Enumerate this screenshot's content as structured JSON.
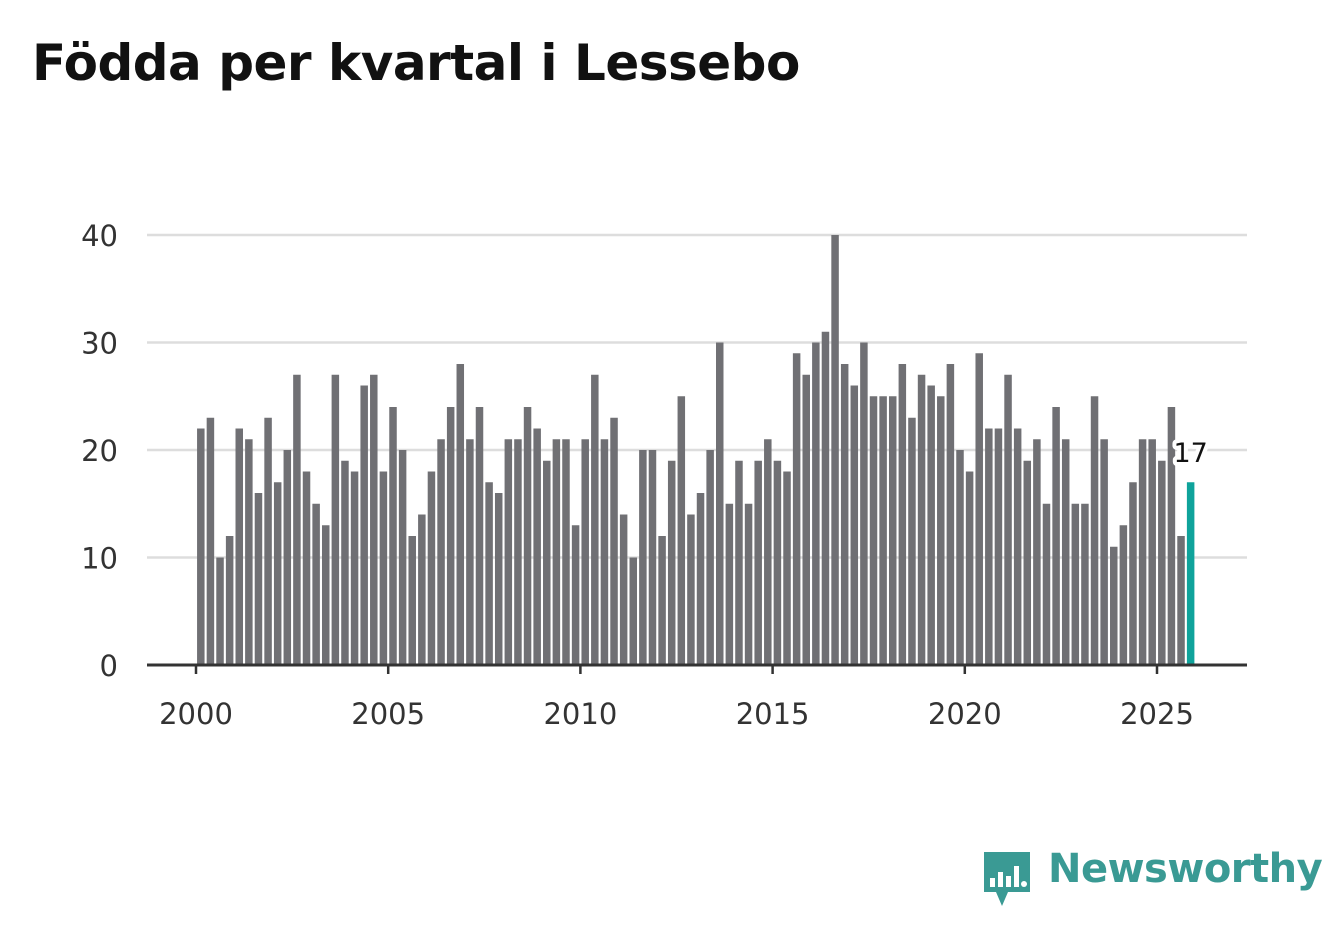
{
  "title": "Födda per kvartal i Lessebo",
  "brand": {
    "name": "Newsworthy",
    "icon": "newsworthy-logo-icon",
    "color": "#3a9a94"
  },
  "colors": {
    "bar": "#707074",
    "highlight": "#0fa39b",
    "grid": "#dddddd",
    "axis": "#333333"
  },
  "chart_data": {
    "type": "bar",
    "title": "Födda per kvartal i Lessebo",
    "xlabel": "",
    "ylabel": "",
    "ylim": [
      0,
      40
    ],
    "yticks": [
      0,
      10,
      20,
      30,
      40
    ],
    "xticks": [
      "2000",
      "2005",
      "2010",
      "2015",
      "2020",
      "2025"
    ],
    "start": {
      "year": 2000,
      "quarter": 1
    },
    "categories": [
      "2000 K1",
      "2000 K2",
      "2000 K3",
      "2000 K4",
      "2001 K1",
      "2001 K2",
      "2001 K3",
      "2001 K4",
      "2002 K1",
      "2002 K2",
      "2002 K3",
      "2002 K4",
      "2003 K1",
      "2003 K2",
      "2003 K3",
      "2003 K4",
      "2004 K1",
      "2004 K2",
      "2004 K3",
      "2004 K4",
      "2005 K1",
      "2005 K2",
      "2005 K3",
      "2005 K4",
      "2006 K1",
      "2006 K2",
      "2006 K3",
      "2006 K4",
      "2007 K1",
      "2007 K2",
      "2007 K3",
      "2007 K4",
      "2008 K1",
      "2008 K2",
      "2008 K3",
      "2008 K4",
      "2009 K1",
      "2009 K2",
      "2009 K3",
      "2009 K4",
      "2010 K1",
      "2010 K2",
      "2010 K3",
      "2010 K4",
      "2011 K1",
      "2011 K2",
      "2011 K3",
      "2011 K4",
      "2012 K1",
      "2012 K2",
      "2012 K3",
      "2012 K4",
      "2013 K1",
      "2013 K2",
      "2013 K3",
      "2013 K4",
      "2014 K1",
      "2014 K2",
      "2014 K3",
      "2014 K4",
      "2015 K1",
      "2015 K2",
      "2015 K3",
      "2015 K4",
      "2016 K1",
      "2016 K2",
      "2016 K3",
      "2016 K4",
      "2017 K1",
      "2017 K2",
      "2017 K3",
      "2017 K4",
      "2018 K1",
      "2018 K2",
      "2018 K3",
      "2018 K4",
      "2019 K1",
      "2019 K2",
      "2019 K3",
      "2019 K4",
      "2020 K1",
      "2020 K2",
      "2020 K3",
      "2020 K4",
      "2021 K1",
      "2021 K2",
      "2021 K3",
      "2021 K4",
      "2022 K1",
      "2022 K2",
      "2022 K3",
      "2022 K4",
      "2023 K1",
      "2023 K2",
      "2023 K3",
      "2023 K4",
      "2024 K1",
      "2024 K2",
      "2024 K3",
      "2024 K4",
      "2025 K1",
      "2025 K2",
      "2025 K3",
      "2025 K4"
    ],
    "values": [
      22,
      23,
      10,
      12,
      22,
      21,
      16,
      23,
      17,
      20,
      27,
      18,
      15,
      13,
      27,
      19,
      18,
      26,
      27,
      18,
      24,
      20,
      12,
      14,
      18,
      21,
      24,
      28,
      21,
      24,
      17,
      16,
      21,
      21,
      24,
      22,
      19,
      21,
      21,
      13,
      21,
      27,
      21,
      23,
      14,
      10,
      20,
      20,
      12,
      19,
      25,
      14,
      16,
      20,
      30,
      15,
      19,
      15,
      19,
      21,
      19,
      18,
      29,
      27,
      30,
      31,
      40,
      28,
      26,
      30,
      25,
      25,
      25,
      28,
      23,
      27,
      26,
      25,
      28,
      20,
      18,
      29,
      22,
      22,
      27,
      22,
      19,
      21,
      15,
      24,
      21,
      15,
      15,
      25,
      21,
      11,
      13,
      17,
      21,
      21,
      19,
      24,
      12,
      17
    ],
    "highlight": {
      "index": 103,
      "label": "17"
    }
  }
}
